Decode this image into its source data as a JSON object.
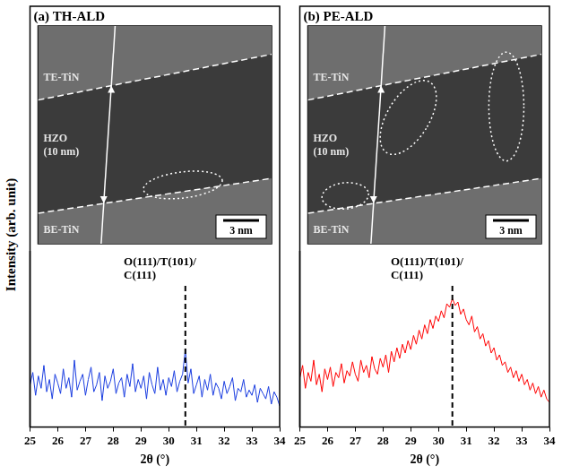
{
  "ylabel": "Intensity (arb. unit)",
  "chart_data": [
    {
      "type": "line",
      "title": "(a) TH-ALD",
      "xlabel": "2θ (°)",
      "tem_image": {
        "top_layer": "TE-TiN",
        "middle_layer": [
          "HZO",
          "(10 nm)"
        ],
        "bottom_layer": "BE-TiN",
        "scale_bar": "3 nm"
      },
      "annotations": [
        {
          "x": 30.6,
          "text": [
            "O(111)/T(101)/",
            "C(111)"
          ],
          "line_style": "dashed"
        }
      ],
      "x": [
        25,
        25.1,
        25.2,
        25.3,
        25.4,
        25.5,
        25.6,
        25.7,
        25.8,
        25.9,
        26,
        26.1,
        26.2,
        26.3,
        26.4,
        26.5,
        26.6,
        26.7,
        26.8,
        26.9,
        27,
        27.1,
        27.2,
        27.3,
        27.4,
        27.5,
        27.6,
        27.7,
        27.8,
        27.9,
        28,
        28.1,
        28.2,
        28.3,
        28.4,
        28.5,
        28.6,
        28.7,
        28.8,
        28.9,
        29,
        29.1,
        29.2,
        29.3,
        29.4,
        29.5,
        29.6,
        29.7,
        29.8,
        29.9,
        30,
        30.1,
        30.2,
        30.3,
        30.4,
        30.5,
        30.6,
        30.7,
        30.8,
        30.9,
        31,
        31.1,
        31.2,
        31.3,
        31.4,
        31.5,
        31.6,
        31.7,
        31.8,
        31.9,
        32,
        32.1,
        32.2,
        32.3,
        32.4,
        32.5,
        32.6,
        32.7,
        32.8,
        32.9,
        33,
        33.1,
        33.2,
        33.3,
        33.4,
        33.5,
        33.6,
        33.7,
        33.8,
        33.9,
        34
      ],
      "series": [
        {
          "color": "#1a3de0",
          "values": [
            24,
            31,
            18,
            29,
            22,
            35,
            20,
            27,
            16,
            30,
            25,
            19,
            33,
            22,
            28,
            17,
            38,
            21,
            26,
            30,
            18,
            27,
            34,
            20,
            24,
            31,
            15,
            29,
            22,
            26,
            33,
            19,
            25,
            28,
            17,
            30,
            23,
            36,
            20,
            27,
            22,
            29,
            16,
            31,
            24,
            19,
            34,
            21,
            27,
            18,
            28,
            23,
            32,
            20,
            26,
            30,
            44,
            25,
            33,
            19,
            24,
            29,
            17,
            27,
            21,
            30,
            18,
            25,
            22,
            16,
            26,
            19,
            23,
            28,
            15,
            22,
            20,
            27,
            17,
            21,
            18,
            24,
            14,
            22,
            19,
            16,
            23,
            13,
            20,
            17,
            12
          ]
        }
      ],
      "xlim": [
        25,
        34
      ],
      "xticks": [
        25,
        26,
        27,
        28,
        29,
        30,
        31,
        32,
        33,
        34
      ],
      "ylim": [
        0,
        100
      ],
      "tick_labels": "x",
      "grid": false
    },
    {
      "type": "line",
      "title": "(b) PE-ALD",
      "xlabel": "2θ (°)",
      "tem_image": {
        "top_layer": "TE-TiN",
        "middle_layer": [
          "HZO",
          "(10 nm)"
        ],
        "bottom_layer": "BE-TiN",
        "scale_bar": "3 nm"
      },
      "annotations": [
        {
          "x": 30.5,
          "text": [
            "O(111)/T(101)/",
            "C(111)"
          ],
          "line_style": "dashed"
        }
      ],
      "x": [
        25,
        25.1,
        25.2,
        25.3,
        25.4,
        25.5,
        25.6,
        25.7,
        25.8,
        25.9,
        26,
        26.1,
        26.2,
        26.3,
        26.4,
        26.5,
        26.6,
        26.7,
        26.8,
        26.9,
        27,
        27.1,
        27.2,
        27.3,
        27.4,
        27.5,
        27.6,
        27.7,
        27.8,
        27.9,
        28,
        28.1,
        28.2,
        28.3,
        28.4,
        28.5,
        28.6,
        28.7,
        28.8,
        28.9,
        29,
        29.1,
        29.2,
        29.3,
        29.4,
        29.5,
        29.6,
        29.7,
        29.8,
        29.9,
        30,
        30.1,
        30.2,
        30.3,
        30.4,
        30.5,
        30.6,
        30.7,
        30.8,
        30.9,
        31,
        31.1,
        31.2,
        31.3,
        31.4,
        31.5,
        31.6,
        31.7,
        31.8,
        31.9,
        32,
        32.1,
        32.2,
        32.3,
        32.4,
        32.5,
        32.6,
        32.7,
        32.8,
        32.9,
        33,
        33.1,
        33.2,
        33.3,
        33.4,
        33.5,
        33.6,
        33.7,
        33.8,
        33.9,
        34
      ],
      "series": [
        {
          "color": "#ff0000",
          "values": [
            28,
            35,
            22,
            31,
            26,
            38,
            24,
            30,
            20,
            33,
            27,
            34,
            23,
            31,
            28,
            36,
            25,
            32,
            29,
            37,
            30,
            26,
            38,
            31,
            35,
            28,
            40,
            33,
            30,
            39,
            34,
            41,
            31,
            43,
            37,
            45,
            39,
            47,
            42,
            49,
            44,
            52,
            47,
            55,
            50,
            58,
            53,
            61,
            56,
            63,
            60,
            66,
            62,
            70,
            68,
            73,
            69,
            71,
            64,
            67,
            61,
            58,
            63,
            54,
            57,
            50,
            53,
            46,
            49,
            42,
            45,
            38,
            41,
            35,
            37,
            31,
            34,
            28,
            32,
            26,
            30,
            24,
            27,
            21,
            25,
            19,
            23,
            17,
            21,
            16,
            14
          ]
        }
      ],
      "xlim": [
        25,
        34
      ],
      "xticks": [
        25,
        26,
        27,
        28,
        29,
        30,
        31,
        32,
        33,
        34
      ],
      "ylim": [
        0,
        100
      ],
      "tick_labels": "x",
      "grid": false
    }
  ]
}
